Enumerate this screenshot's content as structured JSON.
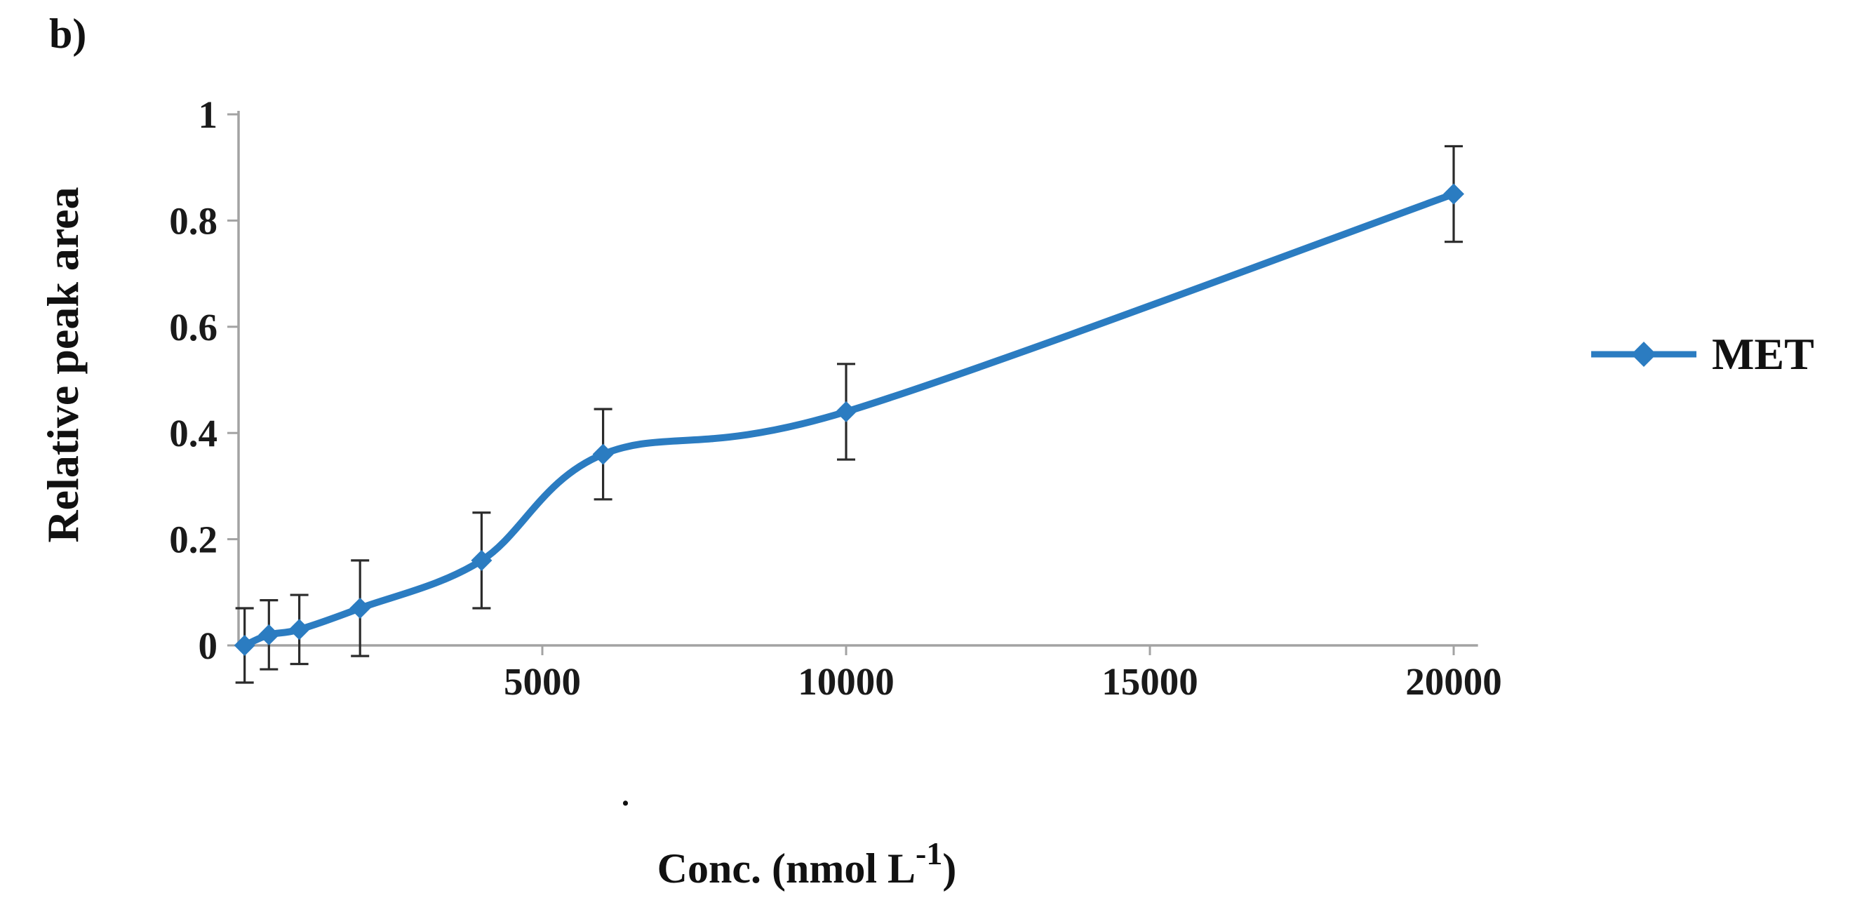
{
  "figure": {
    "panel_label": "b)",
    "stray_mark": "."
  },
  "chart_data": {
    "type": "line",
    "title": "",
    "ylabel": "Relative peak area",
    "xlabel_prefix": "Conc.  (nmol L",
    "xlabel_superscript": "-1",
    "xlabel_suffix": ")",
    "x_ticks": [
      5000,
      10000,
      15000,
      20000
    ],
    "y_ticks": [
      0,
      0.2,
      0.4,
      0.6,
      0.8,
      1
    ],
    "xlim": [
      0,
      20400
    ],
    "ylim": [
      0,
      1
    ],
    "grid": false,
    "legend_position": "right",
    "axis_color": "#a3a3a3",
    "error_bar_color": "#2b2b2b",
    "series": [
      {
        "name": "MET",
        "color": "#2b7cc1",
        "marker": "diamond",
        "x": [
          100,
          500,
          1000,
          2000,
          4000,
          6000,
          10000,
          20000
        ],
        "y": [
          0.0,
          0.02,
          0.03,
          0.07,
          0.16,
          0.36,
          0.44,
          0.85
        ],
        "y_err": [
          0.07,
          0.065,
          0.065,
          0.09,
          0.09,
          0.085,
          0.09,
          0.09
        ]
      }
    ]
  }
}
